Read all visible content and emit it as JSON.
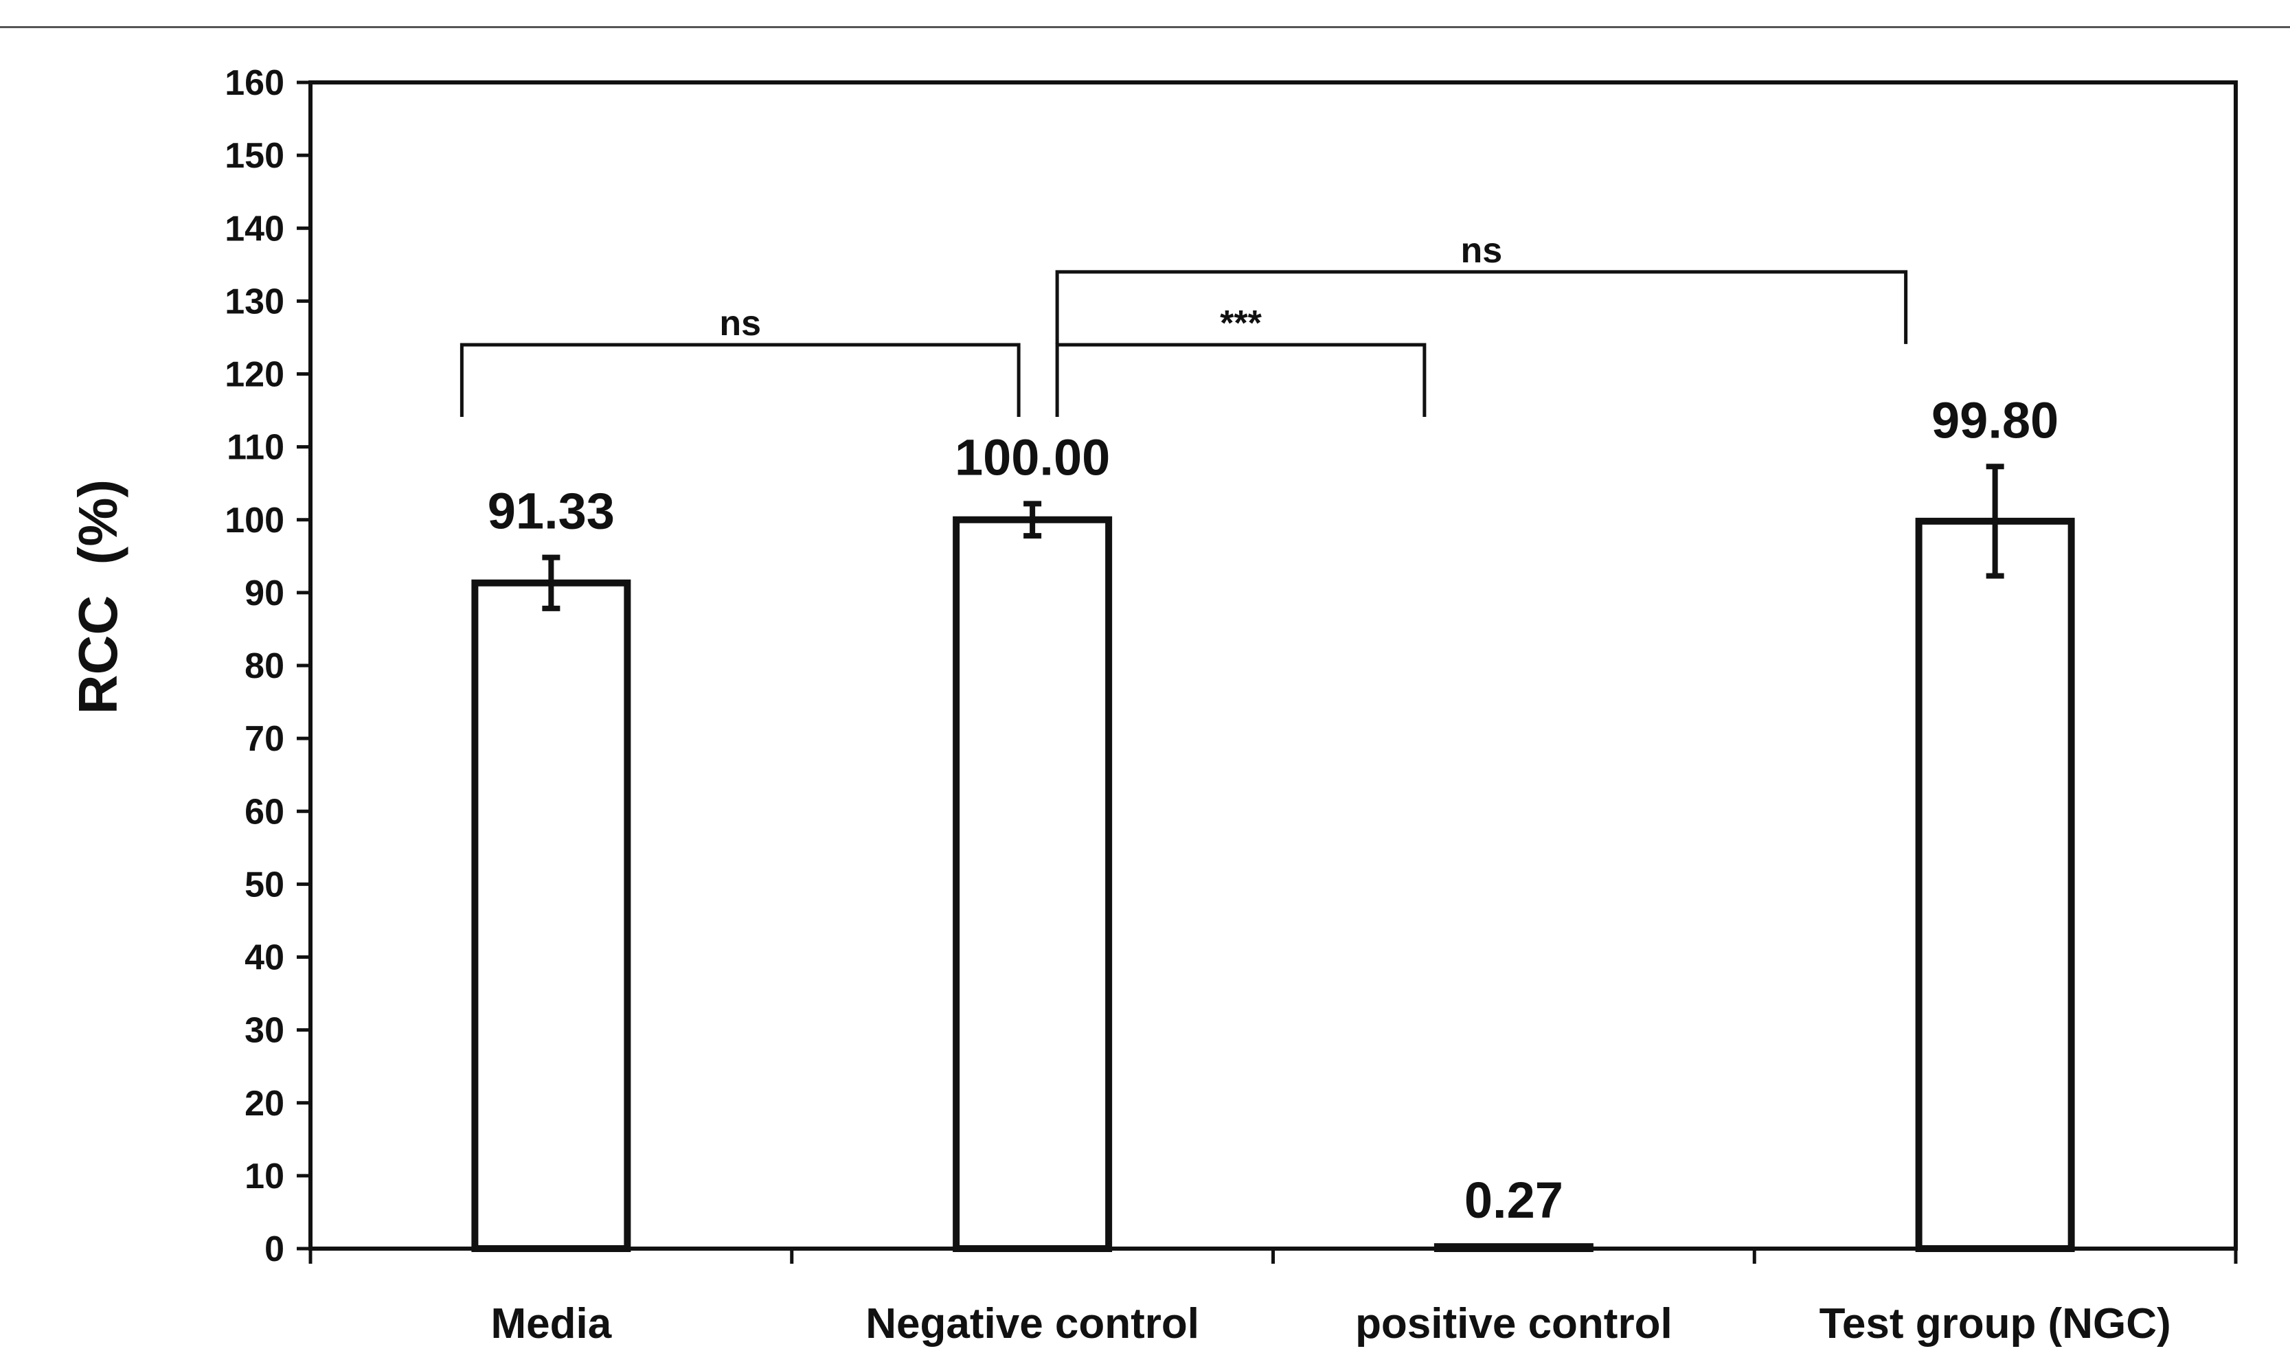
{
  "chart_data": {
    "type": "bar",
    "categories": [
      "Media",
      "Negative control",
      "positive control",
      "Test group (NGC)"
    ],
    "values": [
      91.33,
      100.0,
      0.27,
      99.8
    ],
    "data_labels": [
      "91.33",
      "100.00",
      "0.27",
      "99.80"
    ],
    "error_bars": [
      3.5,
      2.2,
      0.0,
      7.5
    ],
    "ylabel": "RCC  (%)",
    "xlabel": "",
    "ylim": [
      0,
      160
    ],
    "yticks": [
      0,
      10,
      20,
      30,
      40,
      50,
      60,
      70,
      80,
      90,
      100,
      110,
      120,
      130,
      140,
      150,
      160
    ],
    "grid": false,
    "legend": "none",
    "significance": [
      {
        "from": 0,
        "to": 1,
        "label": "ns",
        "level": 124
      },
      {
        "from": 1,
        "to": 2,
        "label": "***",
        "level": 124
      },
      {
        "from": 1,
        "to": 3,
        "label": "ns",
        "level": 134
      }
    ],
    "colors": {
      "bar_fill": "#ffffff",
      "bar_stroke": "#111111",
      "axis": "#111111",
      "top_rule": "#555555"
    }
  }
}
